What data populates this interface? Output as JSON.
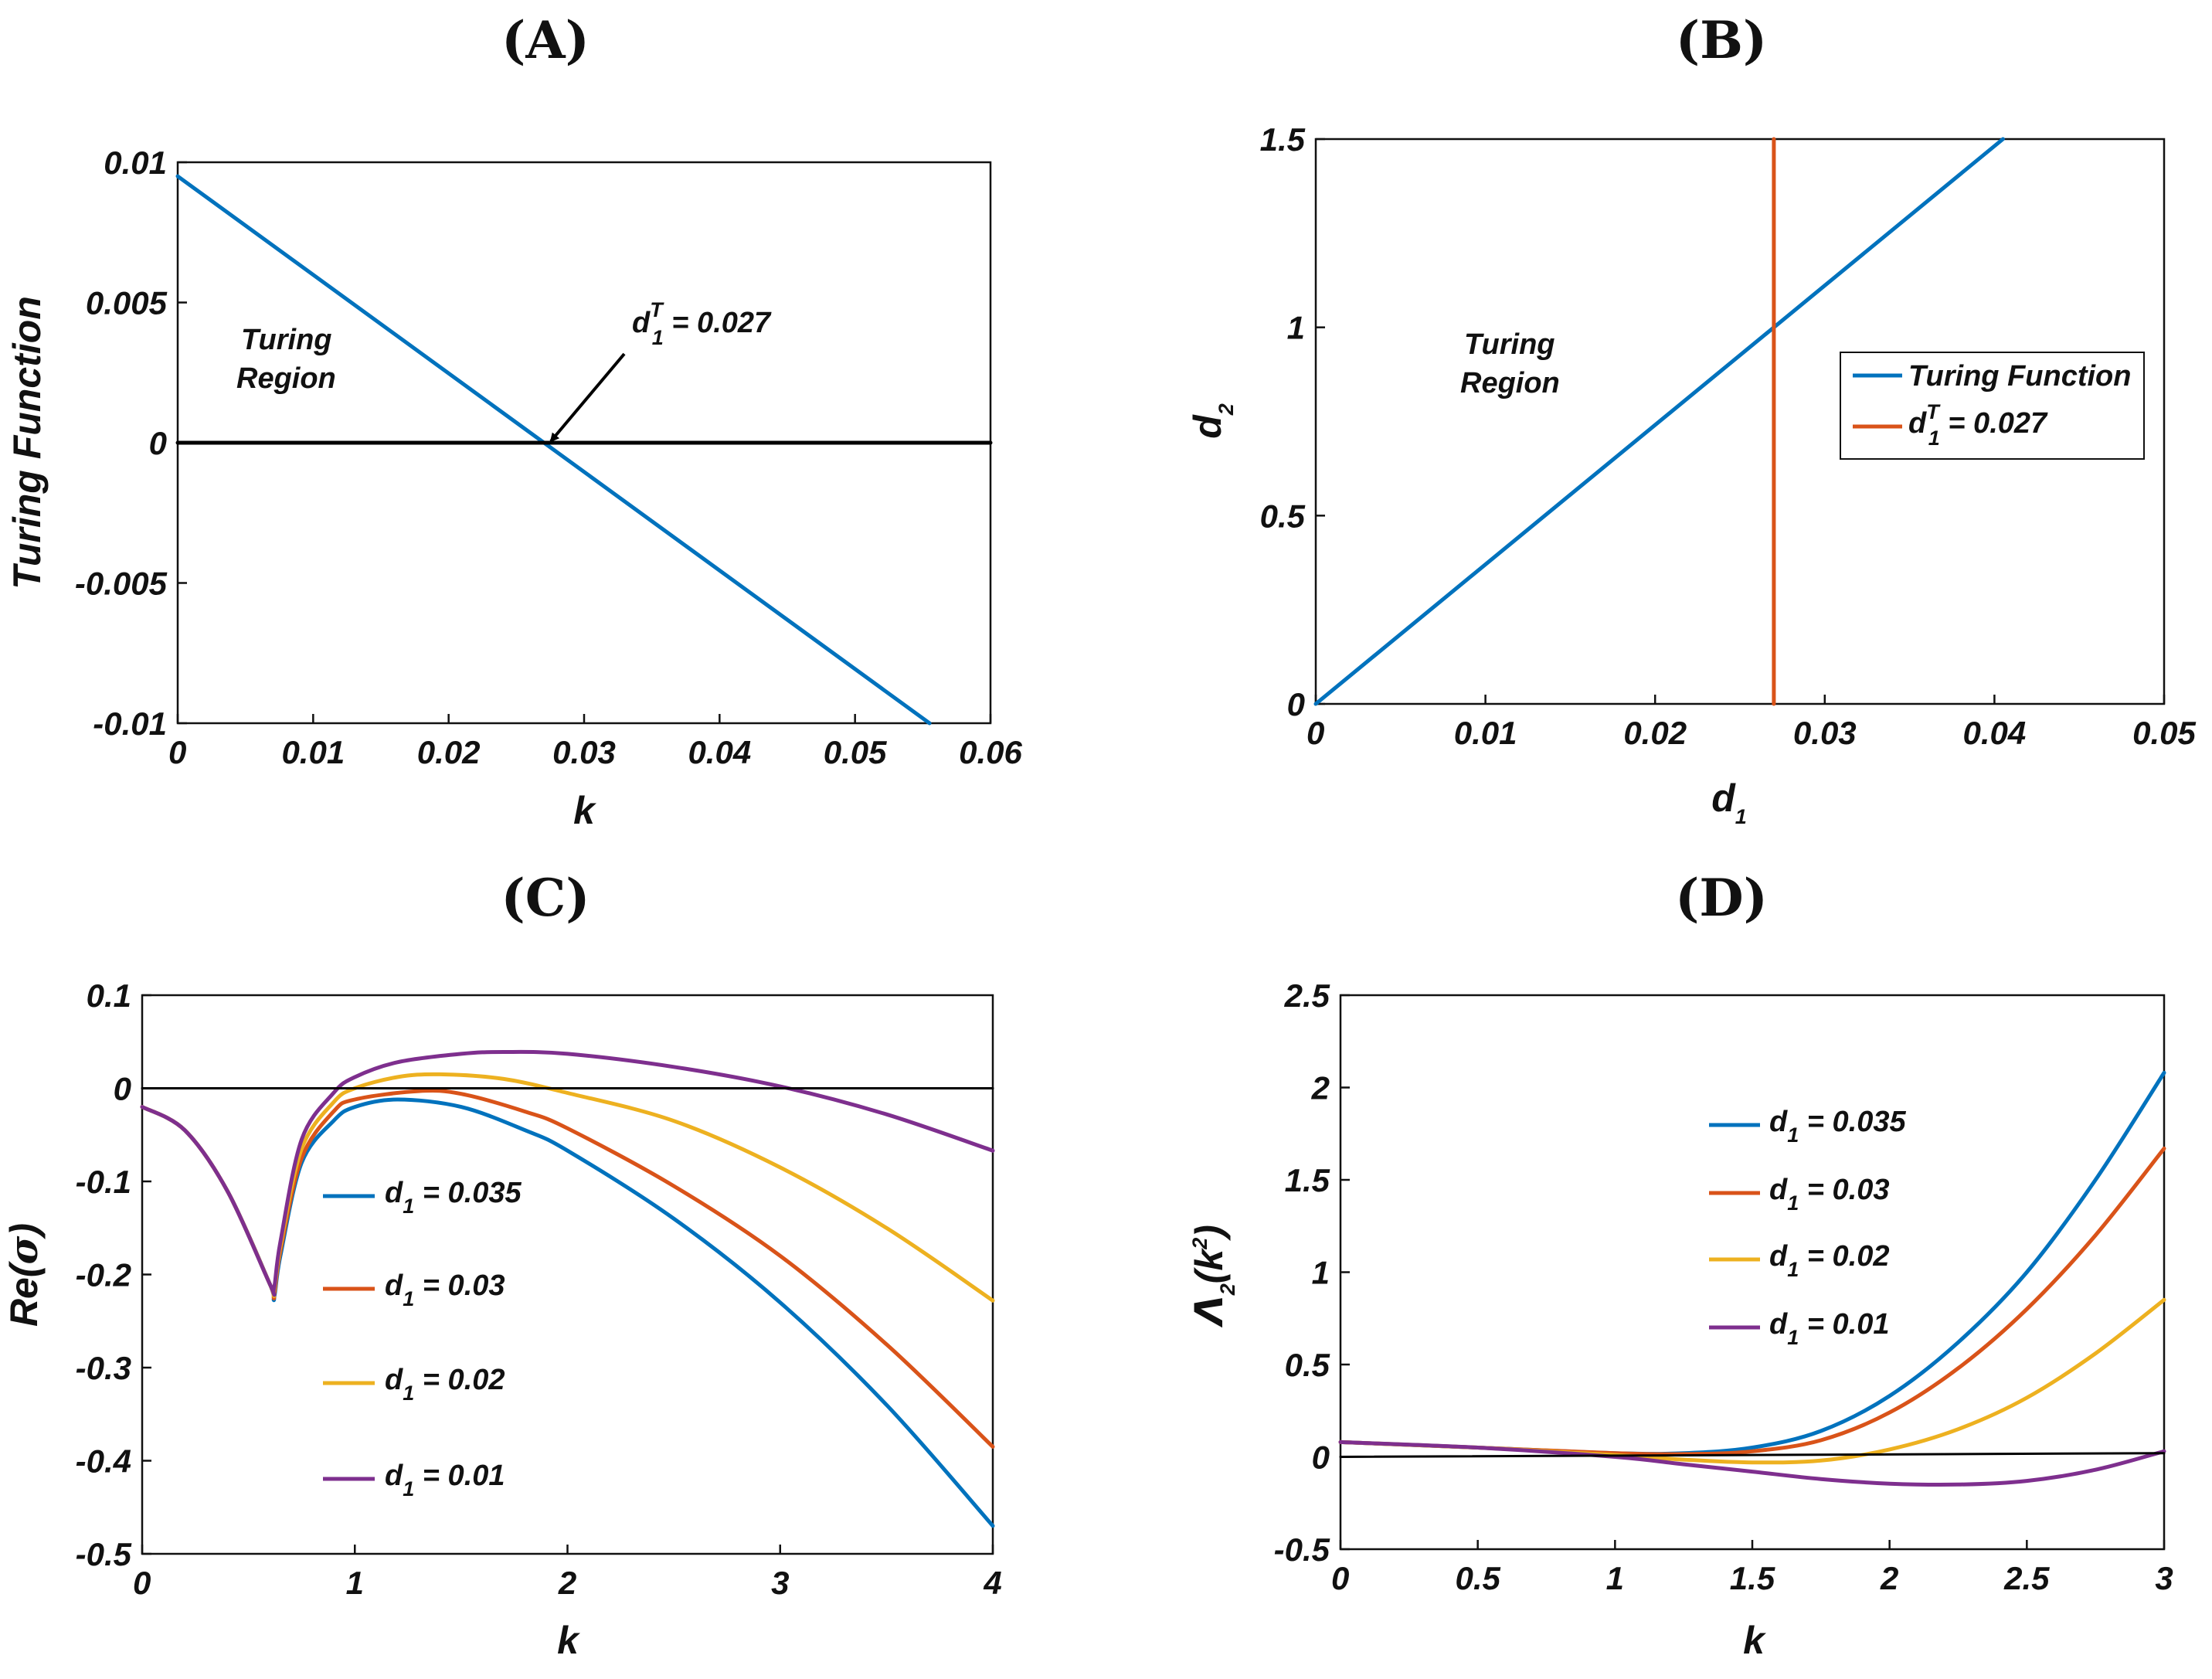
{
  "colors": {
    "blue": "#0072BD",
    "orange": "#D95319",
    "yellow": "#EDB120",
    "purple": "#7E2F8E",
    "black": "#000000"
  },
  "chart_data": [
    {
      "id": "A",
      "type": "line",
      "panel_label": "(A)",
      "title": "",
      "xlabel": "k",
      "ylabel": "Turing Function",
      "xlim": [
        0,
        0.06
      ],
      "ylim": [
        -0.01,
        0.01
      ],
      "xticks": [
        "0",
        "0.01",
        "0.02",
        "0.03",
        "0.04",
        "0.05",
        "0.06"
      ],
      "yticks": [
        "-0.01",
        "-0.005",
        "0",
        "0.005",
        "0.01"
      ],
      "series": [
        {
          "name": "Turing function",
          "color": "#0072BD",
          "x": [
            0,
            0.0555
          ],
          "y": [
            0.0095,
            -0.01
          ]
        },
        {
          "name": "zero line",
          "color": "#000000",
          "x": [
            0,
            0.06
          ],
          "y": [
            0,
            0
          ]
        }
      ],
      "annotations": {
        "region_line1": "Turing",
        "region_line2": "Region",
        "arrow_text_base": "d",
        "arrow_text_sub": "1",
        "arrow_text_sup": "T",
        "arrow_text_rest": " = 0.027",
        "arrow_point": [
          0.027,
          0
        ]
      }
    },
    {
      "id": "B",
      "type": "line",
      "panel_label": "(B)",
      "title": "",
      "xlabel_base": "d",
      "xlabel_sub": "1",
      "ylabel_base": "d",
      "ylabel_sub": "2",
      "xlim": [
        0,
        0.05
      ],
      "ylim": [
        0,
        1.5
      ],
      "xticks": [
        "0",
        "0.01",
        "0.02",
        "0.03",
        "0.04",
        "0.05"
      ],
      "yticks": [
        "0",
        "0.5",
        "1",
        "1.5"
      ],
      "series": [
        {
          "name": "Turing Function",
          "color": "#0072BD",
          "x": [
            0,
            0.0405
          ],
          "y": [
            0,
            1.5
          ]
        },
        {
          "name": "d1T = 0.027",
          "color": "#D95319",
          "x": [
            0.027,
            0.027
          ],
          "y": [
            0,
            1.5
          ]
        }
      ],
      "legend": {
        "placement": "right-middle",
        "items": [
          {
            "label": "Turing Function",
            "color": "#0072BD"
          },
          {
            "label_base": "d",
            "label_sub": "1",
            "label_sup": "T",
            "label_rest": " = 0.027",
            "color": "#D95319"
          }
        ]
      },
      "annotations": {
        "region_line1": "Turing",
        "region_line2": "Region"
      }
    },
    {
      "id": "C",
      "type": "line",
      "panel_label": "(C)",
      "title": "",
      "xlabel": "k",
      "ylabel_base": "Re(",
      "ylabel_sigma": "σ",
      "ylabel_end": ")",
      "xlim": [
        0,
        4
      ],
      "ylim": [
        -0.5,
        0.1
      ],
      "xticks": [
        "0",
        "1",
        "2",
        "3",
        "4"
      ],
      "yticks": [
        "-0.5",
        "-0.4",
        "-0.3",
        "-0.2",
        "-0.1",
        "0",
        "0.1"
      ],
      "series": [
        {
          "name": "d1 = 0.035",
          "color": "#0072BD",
          "x": [
            0,
            0.2,
            0.4,
            0.6,
            0.62,
            0.65,
            0.75,
            0.9,
            1.0,
            1.2,
            1.5,
            1.8,
            2.0,
            2.5,
            3.0,
            3.5,
            4.0
          ],
          "y": [
            -0.02,
            -0.045,
            -0.11,
            -0.21,
            -0.225,
            -0.18,
            -0.08,
            -0.035,
            -0.02,
            -0.012,
            -0.02,
            -0.045,
            -0.067,
            -0.14,
            -0.23,
            -0.34,
            -0.47
          ]
        },
        {
          "name": "d1 = 0.03",
          "color": "#D95319",
          "x": [
            0,
            0.2,
            0.4,
            0.6,
            0.62,
            0.65,
            0.75,
            0.9,
            1.0,
            1.3,
            1.5,
            1.8,
            2.0,
            2.5,
            3.0,
            3.5,
            4.0
          ],
          "y": [
            -0.02,
            -0.045,
            -0.11,
            -0.21,
            -0.222,
            -0.175,
            -0.075,
            -0.025,
            -0.012,
            -0.003,
            -0.006,
            -0.025,
            -0.043,
            -0.105,
            -0.18,
            -0.275,
            -0.385
          ]
        },
        {
          "name": "d1 = 0.02",
          "color": "#EDB120",
          "x": [
            0,
            0.2,
            0.4,
            0.6,
            0.62,
            0.65,
            0.75,
            0.9,
            1.0,
            1.2,
            1.4,
            1.7,
            2.0,
            2.5,
            3.0,
            3.5,
            4.0
          ],
          "y": [
            -0.02,
            -0.045,
            -0.11,
            -0.21,
            -0.218,
            -0.17,
            -0.065,
            -0.015,
            0.0,
            0.012,
            0.015,
            0.01,
            -0.005,
            -0.035,
            -0.085,
            -0.15,
            -0.228
          ]
        },
        {
          "name": "d1 = 0.01",
          "color": "#7E2F8E",
          "x": [
            0,
            0.2,
            0.4,
            0.6,
            0.62,
            0.65,
            0.75,
            0.9,
            1.0,
            1.2,
            1.5,
            1.7,
            2.0,
            2.5,
            3.0,
            3.5,
            4.0
          ],
          "y": [
            -0.02,
            -0.045,
            -0.11,
            -0.21,
            -0.215,
            -0.165,
            -0.055,
            -0.005,
            0.012,
            0.028,
            0.037,
            0.039,
            0.037,
            0.023,
            0.002,
            -0.028,
            -0.067
          ]
        },
        {
          "name": "zero line",
          "color": "#000000",
          "x": [
            0,
            4
          ],
          "y": [
            0,
            0
          ]
        }
      ],
      "legend": {
        "placement": "center",
        "items": [
          {
            "label_base": "d",
            "label_sub": "1",
            "label_rest": " = 0.035",
            "color": "#0072BD"
          },
          {
            "label_base": "d",
            "label_sub": "1",
            "label_rest": " = 0.03",
            "color": "#D95319"
          },
          {
            "label_base": "d",
            "label_sub": "1",
            "label_rest": " = 0.02",
            "color": "#EDB120"
          },
          {
            "label_base": "d",
            "label_sub": "1",
            "label_rest": " = 0.01",
            "color": "#7E2F8E"
          }
        ]
      }
    },
    {
      "id": "D",
      "type": "line",
      "panel_label": "(D)",
      "title": "",
      "xlabel": "k",
      "ylabel_base": "Λ",
      "ylabel_sub": "2",
      "ylabel_mid": "(k",
      "ylabel_sup": "2",
      "ylabel_end": ")",
      "xlim": [
        0,
        3
      ],
      "ylim": [
        -0.5,
        2.5
      ],
      "xticks": [
        "0",
        "0.5",
        "1",
        "1.5",
        "2",
        "2.5",
        "3"
      ],
      "yticks": [
        "-0.5",
        "0",
        "0.5",
        "1",
        "1.5",
        "2",
        "2.5"
      ],
      "series": [
        {
          "name": "d1 = 0.035",
          "color": "#0072BD",
          "x": [
            0,
            0.5,
            1.0,
            1.25,
            1.5,
            1.75,
            2.0,
            2.25,
            2.5,
            2.75,
            3.0
          ],
          "y": [
            0.08,
            0.05,
            0.02,
            0.02,
            0.05,
            0.14,
            0.33,
            0.62,
            1.0,
            1.5,
            2.08
          ]
        },
        {
          "name": "d1 = 0.03",
          "color": "#D95319",
          "x": [
            0,
            0.5,
            1.0,
            1.25,
            1.5,
            1.75,
            2.0,
            2.25,
            2.5,
            2.75,
            3.0
          ],
          "y": [
            0.08,
            0.05,
            0.02,
            0.015,
            0.03,
            0.09,
            0.24,
            0.48,
            0.8,
            1.2,
            1.67
          ]
        },
        {
          "name": "d1 = 0.02",
          "color": "#EDB120",
          "x": [
            0,
            0.5,
            1.0,
            1.25,
            1.5,
            1.75,
            2.0,
            2.25,
            2.5,
            2.75,
            3.0
          ],
          "y": [
            0.08,
            0.05,
            0.01,
            -0.015,
            -0.03,
            -0.02,
            0.04,
            0.15,
            0.32,
            0.56,
            0.85
          ]
        },
        {
          "name": "d1 = 0.01",
          "color": "#7E2F8E",
          "x": [
            0,
            0.5,
            1.0,
            1.25,
            1.5,
            1.75,
            2.0,
            2.25,
            2.5,
            2.75,
            3.0
          ],
          "y": [
            0.08,
            0.05,
            0.0,
            -0.04,
            -0.08,
            -0.12,
            -0.145,
            -0.15,
            -0.13,
            -0.07,
            0.03
          ]
        },
        {
          "name": "zero line",
          "color": "#000000",
          "x": [
            0,
            3
          ],
          "y": [
            0,
            0.02
          ]
        }
      ],
      "legend": {
        "placement": "top-center",
        "items": [
          {
            "label_base": "d",
            "label_sub": "1",
            "label_rest": " = 0.035",
            "color": "#0072BD"
          },
          {
            "label_base": "d",
            "label_sub": "1",
            "label_rest": " = 0.03",
            "color": "#D95319"
          },
          {
            "label_base": "d",
            "label_sub": "1",
            "label_rest": " = 0.02",
            "color": "#EDB120"
          },
          {
            "label_base": "d",
            "label_sub": "1",
            "label_rest": " = 0.01",
            "color": "#7E2F8E"
          }
        ]
      }
    }
  ]
}
